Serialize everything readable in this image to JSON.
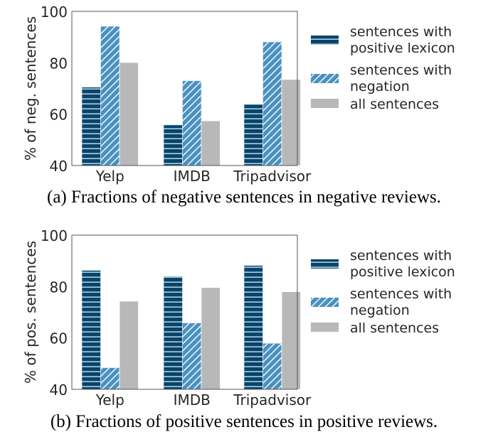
{
  "chart_data": [
    {
      "type": "bar",
      "title": "",
      "caption": "(a) Fractions of negative sentences in negative reviews.",
      "xlabel": "",
      "ylabel": "% of neg. sentences",
      "ylim": [
        40,
        100
      ],
      "yticks": [
        "40",
        "60",
        "80",
        "100"
      ],
      "categories": [
        "Yelp",
        "IMDB",
        "Tripadvisor"
      ],
      "grid": false,
      "legend_position": "right",
      "series": [
        {
          "name": "sentences with positive lexicon",
          "values": [
            70.5,
            55.8,
            63.8
          ],
          "color": "#08456b",
          "hatch": "horizontal"
        },
        {
          "name": "sentences with negation",
          "values": [
            94.2,
            73.0,
            88.1
          ],
          "color": "#4a90bf",
          "hatch": "diagonal"
        },
        {
          "name": "all sentences",
          "values": [
            80.1,
            57.4,
            73.5
          ],
          "color": "#b8b8b8",
          "hatch": "none"
        }
      ]
    },
    {
      "type": "bar",
      "title": "",
      "caption": "(b) Fractions of positive sentences in positive reviews.",
      "xlabel": "",
      "ylabel": "% of pos. sentences",
      "ylim": [
        40,
        100
      ],
      "yticks": [
        "40",
        "60",
        "80",
        "100"
      ],
      "categories": [
        "Yelp",
        "IMDB",
        "Tripadvisor"
      ],
      "grid": false,
      "legend_position": "right",
      "series": [
        {
          "name": "sentences with positive lexicon",
          "values": [
            86.3,
            84.0,
            88.2
          ],
          "color": "#08456b",
          "hatch": "horizontal"
        },
        {
          "name": "sentences with negation",
          "values": [
            48.4,
            65.8,
            57.9
          ],
          "color": "#4a90bf",
          "hatch": "diagonal"
        },
        {
          "name": "all sentences",
          "values": [
            74.3,
            79.6,
            78.0
          ],
          "color": "#b8b8b8",
          "hatch": "none"
        }
      ]
    }
  ],
  "legend": {
    "items": [
      {
        "line1": "sentences with",
        "line2": "positive lexicon"
      },
      {
        "line1": "sentences with",
        "line2": "negation"
      },
      {
        "line1": "all sentences",
        "line2": ""
      }
    ]
  }
}
